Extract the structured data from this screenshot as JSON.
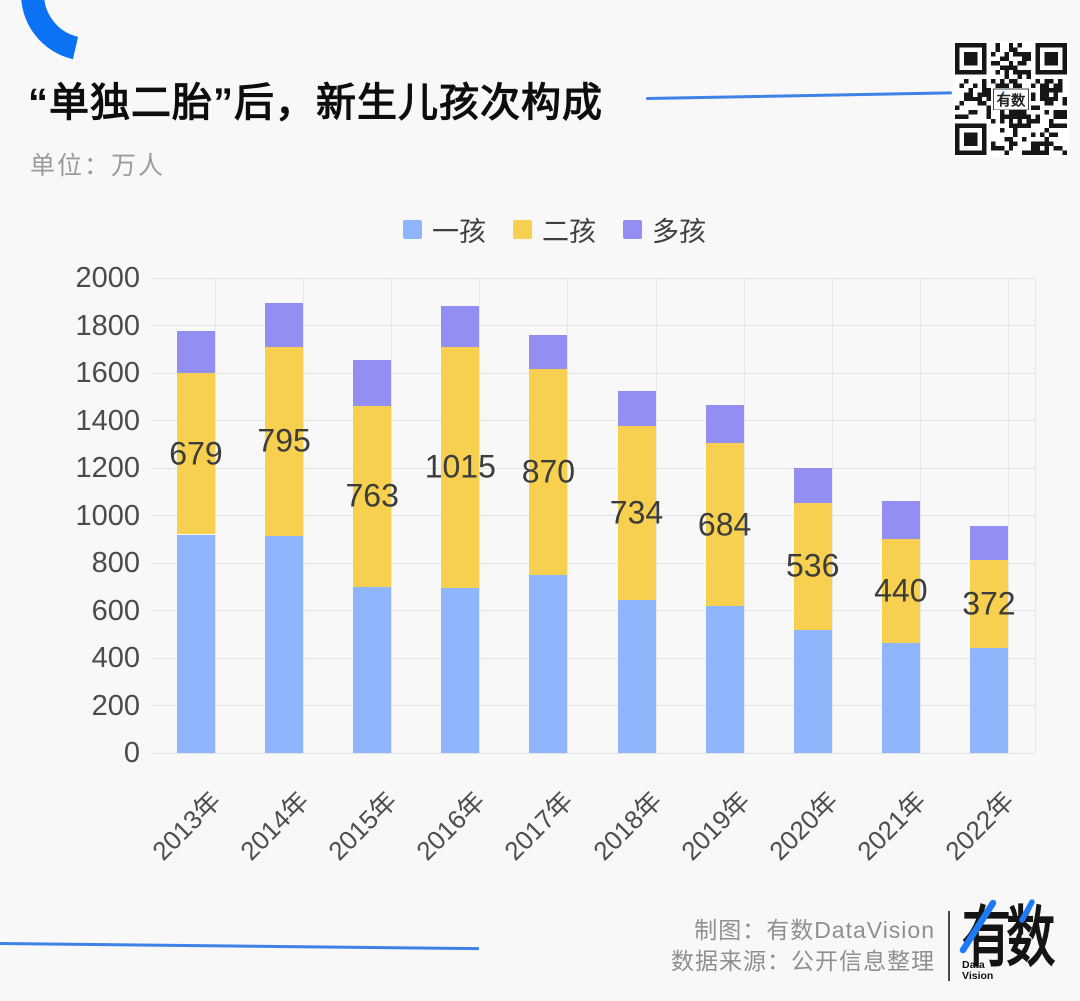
{
  "header": {
    "title": "“单独二胎”后，新生儿孩次构成",
    "unit_label": "单位：万人",
    "accent_line_color": "#3E82E8",
    "corner_arc_color": "#0B72F3"
  },
  "qr": {
    "center_label": "有数"
  },
  "chart_data": {
    "type": "bar",
    "stacked": true,
    "title": "“单独二胎”后，新生儿孩次构成",
    "ylabel": "万人",
    "categories": [
      "2013年",
      "2014年",
      "2015年",
      "2016年",
      "2017年",
      "2018年",
      "2019年",
      "2020年",
      "2021年",
      "2022年"
    ],
    "series": [
      {
        "name": "一孩",
        "color": "#8FB6FC",
        "values": [
          920,
          915,
          700,
          695,
          748,
          644,
          620,
          518,
          462,
          441
        ]
      },
      {
        "name": "二孩",
        "color": "#F6D04E",
        "values": [
          679,
          795,
          763,
          1015,
          870,
          734,
          684,
          536,
          440,
          372
        ],
        "show_labels": true
      },
      {
        "name": "多孩",
        "color": "#938FF2",
        "values": [
          177,
          185,
          192,
          173,
          140,
          145,
          161,
          146,
          160,
          143
        ]
      }
    ],
    "totals": [
      1776,
      1895,
      1655,
      1883,
      1758,
      1523,
      1465,
      1200,
      1062,
      956
    ],
    "ylim": [
      0,
      2000
    ],
    "yticks": [
      0,
      200,
      400,
      600,
      800,
      1000,
      1200,
      1400,
      1600,
      1800,
      2000
    ],
    "grid": true,
    "legend_position": "top",
    "value_label_color": "#3c3c3c"
  },
  "footer": {
    "credit_line1": "制图：有数DataVision",
    "credit_line2": "数据来源：公开信息整理",
    "logo_text": "有数",
    "logo_sub1": "Data",
    "logo_sub2": "Vision"
  }
}
